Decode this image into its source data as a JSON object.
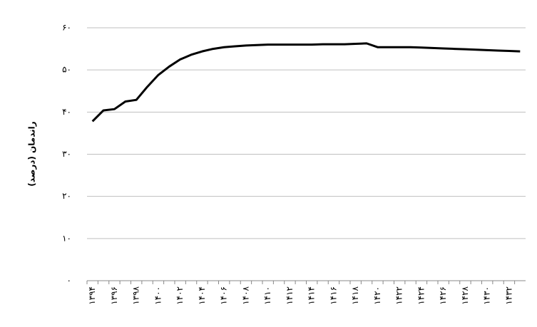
{
  "chart_data": {
    "type": "line",
    "y_label": "راندمان (درصد)",
    "categories": [
      "۱۳۹۴",
      null,
      "۱۳۹۶",
      null,
      "۱۳۹۸",
      null,
      "۱۴۰۰",
      null,
      "۱۴۰۲",
      null,
      "۱۴۰۴",
      null,
      "۱۴۰۶",
      null,
      "۱۴۰۸",
      null,
      "۱۴۱۰",
      null,
      "۱۴۱۲",
      null,
      "۱۴۱۴",
      null,
      "۱۴۱۶",
      null,
      "۱۴۱۸",
      null,
      "۱۴۲۰",
      null,
      "۱۴۲۲",
      null,
      "۱۴۲۴",
      null,
      "۱۴۲۶",
      null,
      "۱۴۲۸",
      null,
      "۱۴۳۰",
      null,
      "۱۴۳۲",
      null
    ],
    "values": [
      37.8,
      40.4,
      40.7,
      42.5,
      42.9,
      46.0,
      48.8,
      50.8,
      52.5,
      53.6,
      54.4,
      55.0,
      55.4,
      55.6,
      55.8,
      55.9,
      56.0,
      56.0,
      56.0,
      56.0,
      56.0,
      56.1,
      56.1,
      56.1,
      56.2,
      56.3,
      55.4,
      55.4,
      55.4,
      55.4,
      55.3,
      55.2,
      55.1,
      55.0,
      54.9,
      54.8,
      54.7,
      54.6,
      54.5,
      54.4
    ],
    "color": "#000000",
    "ylim": [
      0,
      60
    ],
    "yticks": [
      {
        "value": 0,
        "label": "۰"
      },
      {
        "value": 10,
        "label": "۱۰"
      },
      {
        "value": 20,
        "label": "۲۰"
      },
      {
        "value": 30,
        "label": "۳۰"
      },
      {
        "value": 40,
        "label": "۴۰"
      },
      {
        "value": 50,
        "label": "۵۰"
      },
      {
        "value": 60,
        "label": "۶۰"
      }
    ],
    "grid": true
  }
}
